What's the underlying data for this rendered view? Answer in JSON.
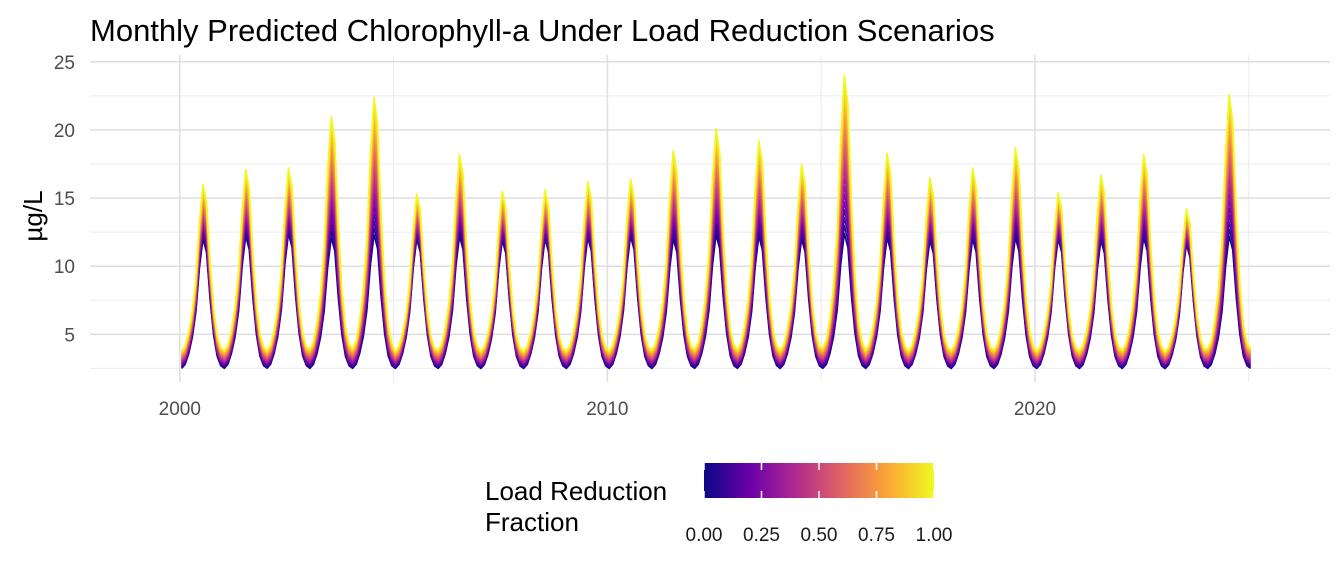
{
  "chart_data": {
    "type": "line",
    "title": "Monthly Predicted Chlorophyll-a Under Load Reduction Scenarios",
    "xlabel": "",
    "ylabel": "µg/L",
    "x_domain": [
      1997.9,
      2026.9
    ],
    "xlim": [
      "1998-01",
      "2027-01"
    ],
    "x_ticks": [
      2000,
      2010,
      2020
    ],
    "x_tick_labels": [
      "2000",
      "2010",
      "2020"
    ],
    "ylim": [
      1.5,
      25.5
    ],
    "y_ticks": [
      5,
      10,
      15,
      20,
      25
    ],
    "y_tick_labels": [
      "5",
      "10",
      "15",
      "20",
      "25"
    ],
    "grid": true,
    "legend": {
      "title_lines": [
        "Load Reduction",
        "Fraction"
      ],
      "position": "bottom",
      "colorbar": true,
      "range": [
        0,
        1
      ],
      "ticks": [
        0,
        0.25,
        0.5,
        0.75,
        1
      ],
      "tick_labels": [
        "0.00",
        "0.25",
        "0.50",
        "0.75",
        "1.00"
      ],
      "colormap": "plasma",
      "stops": [
        "#0d0887",
        "#6a00a8",
        "#b12a90",
        "#e16462",
        "#fca636",
        "#f0f921"
      ]
    },
    "series_fractions": [
      0.0,
      0.05,
      0.1,
      0.15,
      0.2,
      0.25,
      0.3,
      0.35,
      0.4,
      0.45,
      0.5,
      0.55,
      0.6,
      0.65,
      0.7,
      0.75,
      0.8,
      0.85,
      0.9,
      0.95,
      1.0
    ],
    "start_month": "2000-01",
    "end_month": "2025-01",
    "summer_peaks_fraction_1": [
      16.0,
      17.1,
      17.2,
      21.0,
      22.4,
      15.3,
      18.2,
      15.5,
      15.6,
      16.2,
      16.4,
      18.5,
      20.1,
      19.2,
      17.5,
      24.0,
      18.3,
      16.5,
      17.2,
      18.7,
      15.4,
      16.7,
      18.2,
      14.2,
      22.6
    ],
    "summer_peaks_fraction_0": [
      12.0,
      12.2,
      12.4,
      12.1,
      12.3,
      12.0,
      12.2,
      11.9,
      12.0,
      12.1,
      12.2,
      12.0,
      12.3,
      12.2,
      12.0,
      12.4,
      12.1,
      11.9,
      12.0,
      12.1,
      12.0,
      11.9,
      12.1,
      11.6,
      12.2
    ],
    "winter_minimum": 2.2,
    "winter_trough_fraction_1": 3.4
  }
}
